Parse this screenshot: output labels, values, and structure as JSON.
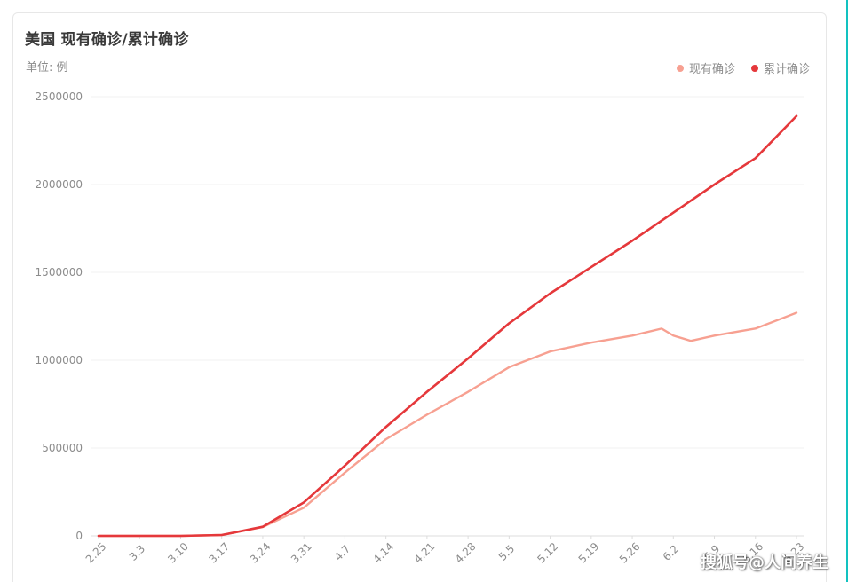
{
  "header": {
    "title": "美国 现有确诊/累计确诊",
    "unit": "单位: 例"
  },
  "legend": {
    "items": [
      {
        "label": "现有确诊",
        "color": "#f7a091"
      },
      {
        "label": "累计确诊",
        "color": "#e5383b"
      }
    ]
  },
  "watermark": {
    "text": "搜狐号@人间养生"
  },
  "chart_data": {
    "type": "line",
    "title": "美国 现有确诊/累计确诊",
    "xlabel": "",
    "ylabel": "单位: 例",
    "ylim": [
      0,
      2500000
    ],
    "y_ticks": [
      0,
      500000,
      1000000,
      1500000,
      2000000,
      2500000
    ],
    "y_tick_labels": [
      "0",
      "500000",
      "1000000",
      "1500000",
      "2000000",
      "2500000"
    ],
    "x_tick_labels": [
      "2.25",
      "3.3",
      "3.10",
      "3.17",
      "3.24",
      "3.31",
      "4.7",
      "4.14",
      "4.21",
      "4.28",
      "5.5",
      "5.12",
      "5.19",
      "5.26",
      "6.2",
      "6.9",
      "6.16",
      "6.23"
    ],
    "grid": true,
    "legend_position": "top-right",
    "series": [
      {
        "name": "现有确诊",
        "color": "#f7a091",
        "points": [
          [
            "2.25",
            0
          ],
          [
            "3.3",
            0
          ],
          [
            "3.10",
            0
          ],
          [
            "3.17",
            5000
          ],
          [
            "3.24",
            50000
          ],
          [
            "3.31",
            160000
          ],
          [
            "4.7",
            360000
          ],
          [
            "4.14",
            550000
          ],
          [
            "4.21",
            690000
          ],
          [
            "4.28",
            820000
          ],
          [
            "5.5",
            960000
          ],
          [
            "5.12",
            1050000
          ],
          [
            "5.19",
            1100000
          ],
          [
            "5.26",
            1140000
          ],
          [
            "5.31",
            1180000
          ],
          [
            "6.2",
            1140000
          ],
          [
            "6.5",
            1110000
          ],
          [
            "6.9",
            1140000
          ],
          [
            "6.16",
            1180000
          ],
          [
            "6.23",
            1270000
          ]
        ]
      },
      {
        "name": "累计确诊",
        "color": "#e5383b",
        "points": [
          [
            "2.25",
            0
          ],
          [
            "3.3",
            0
          ],
          [
            "3.10",
            0
          ],
          [
            "3.17",
            5000
          ],
          [
            "3.24",
            52000
          ],
          [
            "3.31",
            190000
          ],
          [
            "4.7",
            400000
          ],
          [
            "4.14",
            620000
          ],
          [
            "4.21",
            820000
          ],
          [
            "4.28",
            1010000
          ],
          [
            "5.5",
            1210000
          ],
          [
            "5.12",
            1380000
          ],
          [
            "5.19",
            1530000
          ],
          [
            "5.26",
            1680000
          ],
          [
            "6.2",
            1840000
          ],
          [
            "6.9",
            2000000
          ],
          [
            "6.16",
            2150000
          ],
          [
            "6.23",
            2390000
          ]
        ]
      }
    ]
  }
}
